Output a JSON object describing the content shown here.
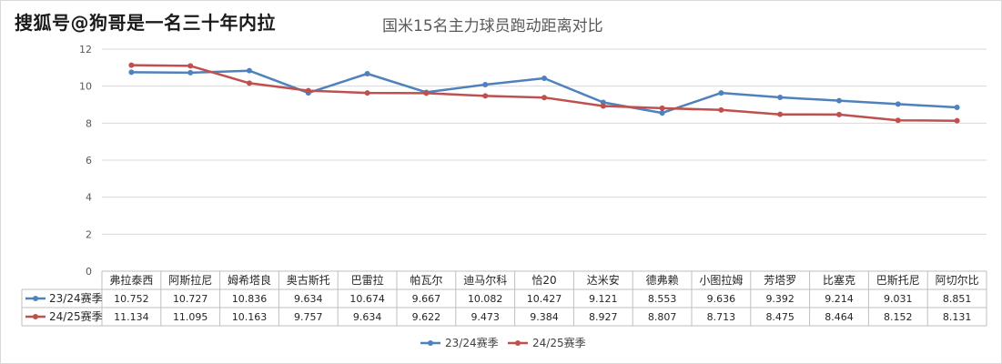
{
  "watermark": "搜狐号@狗哥是一名三十年内拉",
  "chart_data": {
    "type": "line",
    "title": "国米15名主力球员跑动距离对比",
    "categories": [
      "弗拉泰西",
      "阿斯拉尼",
      "姆希塔良",
      "奥古斯托",
      "巴雷拉",
      "帕瓦尔",
      "迪马尔科",
      "恰20",
      "达米安",
      "德弗赖",
      "小图拉姆",
      "芳塔罗",
      "比塞克",
      "巴斯托尼",
      "阿切尔比"
    ],
    "series": [
      {
        "name": "23/24赛季",
        "color": "#4f81bd",
        "values": [
          10.752,
          10.727,
          10.836,
          9.634,
          10.674,
          9.667,
          10.082,
          10.427,
          9.121,
          8.553,
          9.636,
          9.392,
          9.214,
          9.031,
          8.851
        ]
      },
      {
        "name": "24/25赛季",
        "color": "#c0504d",
        "values": [
          11.134,
          11.095,
          10.163,
          9.757,
          9.634,
          9.622,
          9.473,
          9.384,
          8.927,
          8.807,
          8.713,
          8.475,
          8.464,
          8.152,
          8.131
        ]
      }
    ],
    "yticks": [
      0,
      2,
      4,
      6,
      8,
      10,
      12
    ],
    "ylim": [
      0,
      12
    ],
    "grid": true,
    "data_table": true,
    "legend_position": "bottom"
  }
}
